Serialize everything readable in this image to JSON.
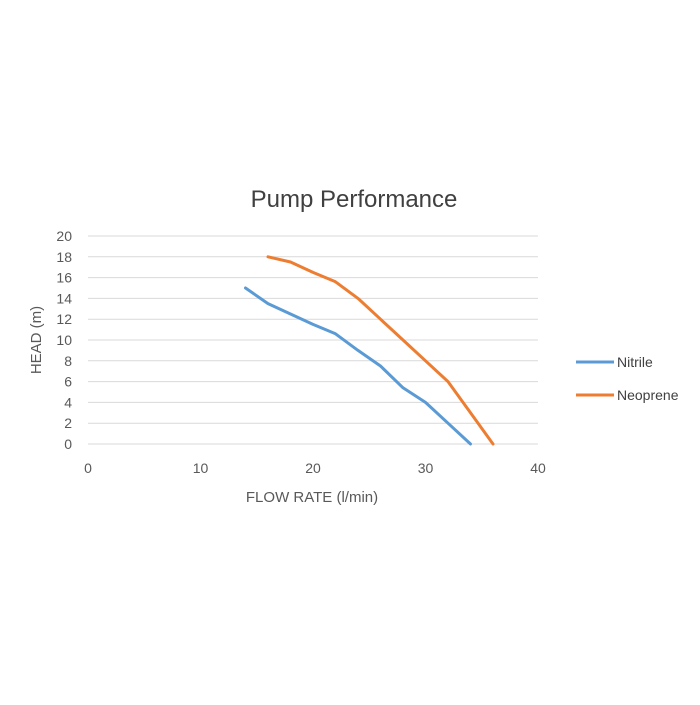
{
  "chart_data": {
    "type": "line",
    "title": "Pump Performance",
    "xlabel": "FLOW RATE (l/min)",
    "ylabel": "HEAD (m)",
    "xlim": [
      0,
      40
    ],
    "ylim": [
      0,
      20
    ],
    "xticks": [
      0,
      10,
      20,
      30,
      40
    ],
    "yticks": [
      0,
      2,
      4,
      6,
      8,
      10,
      12,
      14,
      16,
      18,
      20
    ],
    "grid": "horizontal",
    "legend": "right",
    "series": [
      {
        "name": "Nitrile",
        "color": "#5B9BD5",
        "x": [
          14,
          16,
          18,
          20,
          22,
          24,
          26,
          28,
          30,
          32,
          34
        ],
        "y": [
          15,
          13.5,
          12.5,
          11.5,
          10.6,
          9,
          7.5,
          5.4,
          4,
          2,
          0
        ]
      },
      {
        "name": "Neoprene",
        "color": "#ED7D31",
        "x": [
          16,
          18,
          20,
          22,
          24,
          26,
          28,
          30,
          32,
          34,
          36
        ],
        "y": [
          18,
          17.5,
          16.5,
          15.6,
          14,
          12,
          10,
          8,
          6,
          3,
          0
        ]
      }
    ]
  }
}
